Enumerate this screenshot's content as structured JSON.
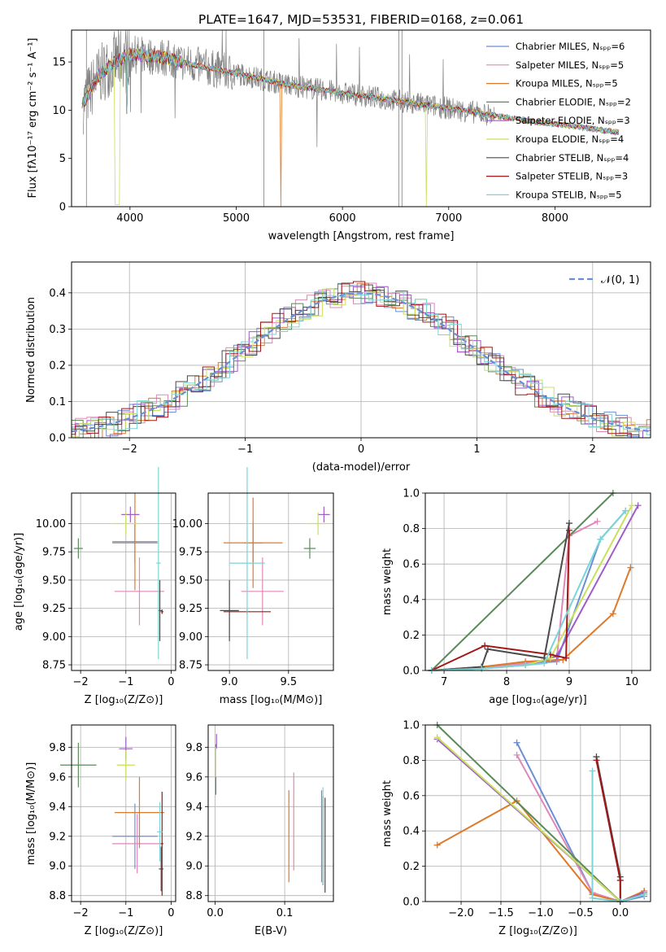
{
  "colors": [
    "#6a8fd8",
    "#e087b8",
    "#de7a2a",
    "#5a8a5a",
    "#a05bc8",
    "#c8e05a",
    "#4a4a4a",
    "#a01818",
    "#7ad4d8"
  ],
  "chart_data": [
    {
      "type": "line",
      "title": "PLATE=1647, MJD=53531, FIBERID=0168, z=0.061",
      "xlabel": "wavelength [Angstrom, rest frame]",
      "ylabel": "Flux [fλ10⁻¹⁷ erg cm⁻² s⁻¹ A⁻¹]",
      "xlim": [
        3450,
        8900
      ],
      "ylim": [
        0,
        18.3
      ],
      "xticks": [
        "4000",
        "5000",
        "6000",
        "7000",
        "8000"
      ],
      "yticks": [
        "0",
        "5",
        "10",
        "15"
      ],
      "legend_position": "top-right",
      "legend": [
        "Chabrier MILES, Nₛₚₚ=6",
        "Salpeter MILES, Nₛₚₚ=5",
        "Kroupa MILES, Nₛₚₚ=5",
        "Chabrier ELODIE, Nₛₚₚ=2",
        "Salpeter ELODIE, Nₛₚₚ=3",
        "Kroupa ELODIE, Nₛₚₚ=4",
        "Chabrier STELIB, Nₛₚₚ=4",
        "Salpeter STELIB, Nₛₚₚ=3",
        "Kroupa STELIB, Nₛₚₚ=5"
      ],
      "data_spectrum_color": "gray",
      "continuum": {
        "x": [
          3550,
          3700,
          3850,
          4000,
          4300,
          4600,
          5000,
          5500,
          6000,
          6500,
          7000,
          7400,
          7800,
          8200,
          8600
        ],
        "y": [
          10.5,
          13.5,
          15.0,
          15.8,
          15.5,
          14.7,
          13.8,
          12.6,
          11.8,
          11.0,
          10.2,
          9.5,
          8.8,
          8.3,
          7.7
        ]
      }
    },
    {
      "type": "histogram",
      "xlabel": "(data-model)/error",
      "ylabel": "Normed distribution",
      "xlim": [
        -2.5,
        2.5
      ],
      "ylim": [
        0,
        0.485
      ],
      "xticks": [
        "−2",
        "−1",
        "0",
        "1",
        "2"
      ],
      "yticks": [
        "0.0",
        "0.1",
        "0.2",
        "0.3",
        "0.4"
      ],
      "legend_position": "top-right",
      "legend": [
        "𝒩(0, 1)"
      ],
      "bin_width": 0.1,
      "reference": "normal distribution, mean 0, sigma 1"
    },
    {
      "type": "scatter",
      "xlabel": "Z [log₁₀(Z/Z⊙)]",
      "ylabel": "age  [log₁₀(age/yr)]",
      "xlim": [
        -2.2,
        0.1
      ],
      "ylim": [
        8.7,
        10.27
      ],
      "xticks": [
        "−2",
        "−1",
        "0"
      ],
      "yticks": [
        "8.75",
        "9.00",
        "9.25",
        "9.50",
        "9.75",
        "10.00"
      ],
      "series": [
        {
          "x": -0.8,
          "y": 9.83,
          "xerr": 0.5,
          "yerr": 0.17
        },
        {
          "x": -0.7,
          "y": 9.4,
          "xerr": 0.55,
          "yerr": 0.3
        },
        {
          "x": -0.8,
          "y": 9.84,
          "xerr": 0.5,
          "yerr": 0.43
        },
        {
          "x": -2.05,
          "y": 9.78,
          "xerr": 0.1,
          "yerr": 0.09
        },
        {
          "x": -0.9,
          "y": 10.08,
          "xerr": 0.2,
          "yerr": 0.07
        },
        {
          "x": -1.0,
          "y": 10.0,
          "xerr": 0.3,
          "yerr": 0.1
        },
        {
          "x": -0.25,
          "y": 9.23,
          "xerr": 0.04,
          "yerr": 0.27
        },
        {
          "x": -0.2,
          "y": 9.22,
          "xerr": 0.03,
          "yerr": 0.02
        },
        {
          "x": -0.28,
          "y": 9.65,
          "xerr": 0.05,
          "yerr": 0.85
        }
      ]
    },
    {
      "type": "scatter",
      "xlabel": "mass [log₁₀(M/M⊙)]",
      "ylabel": "",
      "xlim": [
        8.82,
        9.88
      ],
      "ylim": [
        8.7,
        10.27
      ],
      "xticks": [
        "9.0",
        "9.5"
      ],
      "yticks": [
        "8.75",
        "9.00",
        "9.25",
        "9.50",
        "9.75",
        "10.00"
      ],
      "series": [
        {
          "x": 9.2,
          "y": 9.83,
          "xerr": 0.08,
          "yerr": 0.17
        },
        {
          "x": 9.28,
          "y": 9.4,
          "xerr": 0.18,
          "yerr": 0.3
        },
        {
          "x": 9.2,
          "y": 9.83,
          "xerr": 0.25,
          "yerr": 0.4
        },
        {
          "x": 9.68,
          "y": 9.78,
          "xerr": 0.05,
          "yerr": 0.09
        },
        {
          "x": 9.8,
          "y": 10.08,
          "xerr": 0.05,
          "yerr": 0.07
        },
        {
          "x": 9.75,
          "y": 10.0,
          "xerr": 0.08,
          "yerr": 0.1
        },
        {
          "x": 9.0,
          "y": 9.23,
          "xerr": 0.08,
          "yerr": 0.27
        },
        {
          "x": 9.15,
          "y": 9.22,
          "xerr": 0.2,
          "yerr": 0.02
        },
        {
          "x": 9.15,
          "y": 9.65,
          "xerr": 0.15,
          "yerr": 0.85
        }
      ]
    },
    {
      "type": "line",
      "xlabel": "age  [log₁₀(age/yr)]",
      "ylabel": "mass weight",
      "xlim": [
        6.7,
        10.3
      ],
      "ylim": [
        0,
        1.0
      ],
      "xticks": [
        "7",
        "8",
        "9",
        "10"
      ],
      "yticks": [
        "0.0",
        "0.2",
        "0.4",
        "0.6",
        "0.8",
        "1.0"
      ],
      "series": [
        {
          "x": [
            6.8,
            7.6,
            8.3,
            8.8,
            9.5,
            9.9
          ],
          "y": [
            0.0,
            0.02,
            0.04,
            0.05,
            0.74,
            0.9
          ]
        },
        {
          "x": [
            6.8,
            7.6,
            8.3,
            8.8,
            9.0,
            9.45
          ],
          "y": [
            0.0,
            0.02,
            0.04,
            0.06,
            0.76,
            0.84
          ]
        },
        {
          "x": [
            6.8,
            7.6,
            8.3,
            8.9,
            9.7,
            9.98
          ],
          "y": [
            0.0,
            0.02,
            0.05,
            0.06,
            0.32,
            0.58
          ]
        },
        {
          "x": [
            6.8,
            9.7
          ],
          "y": [
            0.0,
            1.0
          ]
        },
        {
          "x": [
            6.8,
            7.6,
            8.3,
            8.8,
            10.1
          ],
          "y": [
            0.0,
            0.01,
            0.03,
            0.08,
            0.93
          ]
        },
        {
          "x": [
            6.8,
            7.6,
            8.3,
            8.7,
            10.0
          ],
          "y": [
            0.0,
            0.01,
            0.03,
            0.07,
            0.93
          ]
        },
        {
          "x": [
            6.8,
            7.6,
            7.7,
            8.6,
            9.0
          ],
          "y": [
            0.0,
            0.02,
            0.12,
            0.07,
            0.83
          ]
        },
        {
          "x": [
            6.8,
            7.65,
            8.7,
            8.95,
            9.0
          ],
          "y": [
            0.0,
            0.14,
            0.09,
            0.07,
            0.79
          ]
        },
        {
          "x": [
            6.8,
            7.6,
            8.3,
            8.6,
            9.5,
            9.9
          ],
          "y": [
            0.0,
            0.01,
            0.03,
            0.04,
            0.74,
            0.9
          ]
        }
      ]
    },
    {
      "type": "scatter",
      "xlabel": "Z [log₁₀(Z/Z⊙)]",
      "ylabel": "mass [log₁₀(M/M⊙)]",
      "xlim": [
        -2.2,
        0.1
      ],
      "ylim": [
        8.76,
        9.95
      ],
      "xticks": [
        "−2",
        "−1",
        "0"
      ],
      "yticks": [
        "8.8",
        "9.0",
        "9.2",
        "9.4",
        "9.6",
        "9.8"
      ],
      "series": [
        {
          "x": -0.8,
          "y": 9.2,
          "xerr": 0.5,
          "yerr": 0.22
        },
        {
          "x": -0.75,
          "y": 9.15,
          "xerr": 0.55,
          "yerr": 0.2
        },
        {
          "x": -0.7,
          "y": 9.36,
          "xerr": 0.55,
          "yerr": 0.24
        },
        {
          "x": -2.05,
          "y": 9.68,
          "xerr": 0.4,
          "yerr": 0.15
        },
        {
          "x": -1.0,
          "y": 9.79,
          "xerr": 0.15,
          "yerr": 0.08
        },
        {
          "x": -1.0,
          "y": 9.68,
          "xerr": 0.2,
          "yerr": 0.1
        },
        {
          "x": -0.22,
          "y": 8.98,
          "xerr": 0.05,
          "yerr": 0.15
        },
        {
          "x": -0.2,
          "y": 9.15,
          "xerr": 0.03,
          "yerr": 0.35
        },
        {
          "x": -0.25,
          "y": 9.23,
          "xerr": 0.06,
          "yerr": 0.2
        }
      ]
    },
    {
      "type": "scatter",
      "xlabel": "E(B-V)",
      "ylabel": "",
      "xlim": [
        -0.01,
        0.17
      ],
      "ylim": [
        8.76,
        9.95
      ],
      "xticks": [
        "0.0",
        "0.1"
      ],
      "yticks": [
        "8.8",
        "9.0",
        "9.2",
        "9.4",
        "9.6",
        "9.8"
      ],
      "series": [
        {
          "x": 0.153,
          "y": 9.2,
          "xerr": 0.0,
          "yerr": 0.31
        },
        {
          "x": 0.113,
          "y": 9.3,
          "xerr": 0.0,
          "yerr": 0.33
        },
        {
          "x": 0.106,
          "y": 9.2,
          "xerr": 0.0,
          "yerr": 0.31
        },
        {
          "x": 0.001,
          "y": 9.65,
          "xerr": 0.0,
          "yerr": 0.17
        },
        {
          "x": 0.002,
          "y": 9.84,
          "xerr": 0.0,
          "yerr": 0.05
        },
        {
          "x": 0.001,
          "y": 9.7,
          "xerr": 0.0,
          "yerr": 0.1
        },
        {
          "x": 0.158,
          "y": 9.14,
          "xerr": 0.0,
          "yerr": 0.32
        },
        {
          "x": 0.155,
          "y": 9.17,
          "xerr": 0.0,
          "yerr": 0.3
        },
        {
          "x": 0.155,
          "y": 9.2,
          "xerr": 0.0,
          "yerr": 0.33
        }
      ]
    },
    {
      "type": "line",
      "xlabel": "Z [log₁₀(Z/Z⊙)]",
      "ylabel": "mass weight",
      "xlim": [
        -2.45,
        0.38
      ],
      "ylim": [
        0,
        1.0
      ],
      "xticks": [
        "−2.0",
        "−1.5",
        "−1.0",
        "−0.5",
        "0.0"
      ],
      "yticks": [
        "0.0",
        "0.2",
        "0.4",
        "0.6",
        "0.8",
        "1.0"
      ],
      "series": [
        {
          "x": [
            -1.3,
            -0.35,
            0.0,
            0.3
          ],
          "y": [
            0.9,
            0.05,
            0.0,
            0.03
          ]
        },
        {
          "x": [
            -1.3,
            -0.35,
            0.0,
            0.3
          ],
          "y": [
            0.83,
            0.05,
            0.0,
            0.04
          ]
        },
        {
          "x": [
            -2.3,
            -1.3,
            -0.35,
            0.0,
            0.3
          ],
          "y": [
            0.32,
            0.57,
            0.04,
            0.0,
            0.06
          ]
        },
        {
          "x": [
            -2.3,
            0.0
          ],
          "y": [
            1.0,
            0.0
          ]
        },
        {
          "x": [
            -2.3,
            0.0,
            0.3
          ],
          "y": [
            0.92,
            0.0,
            0.05
          ]
        },
        {
          "x": [
            -2.3,
            0.0,
            0.3
          ],
          "y": [
            0.93,
            0.0,
            0.04
          ]
        },
        {
          "x": [
            -0.3,
            0.0,
            0.0
          ],
          "y": [
            0.82,
            0.14,
            0.0
          ]
        },
        {
          "x": [
            -0.3,
            0.0,
            0.0
          ],
          "y": [
            0.8,
            0.12,
            0.0
          ]
        },
        {
          "x": [
            -0.35,
            -0.35,
            0.0,
            0.3
          ],
          "y": [
            0.74,
            0.02,
            0.0,
            0.04
          ]
        }
      ]
    }
  ]
}
